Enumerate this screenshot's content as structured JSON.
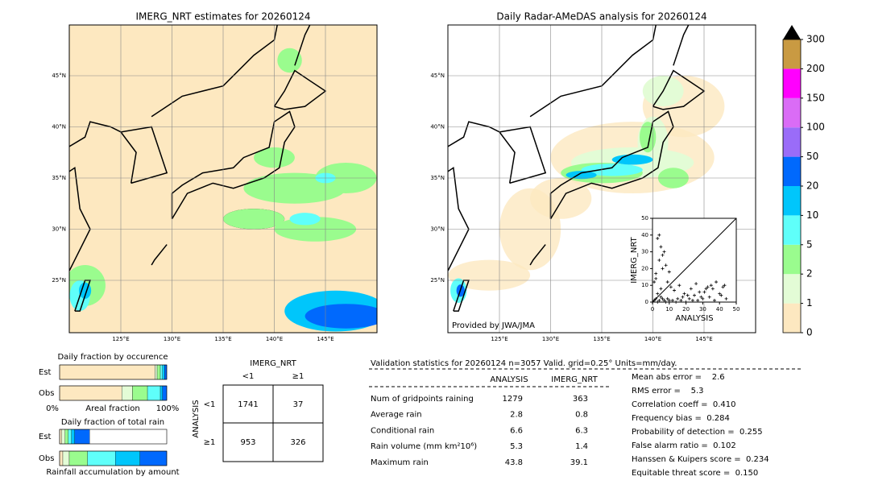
{
  "maps": [
    {
      "title": "IMERG_NRT estimates for 20260124",
      "lat_labels": [
        "45°N",
        "40°N",
        "35°N",
        "30°N",
        "25°N"
      ],
      "lon_labels": [
        "125°E",
        "130°E",
        "135°E",
        "140°E",
        "145°E"
      ]
    },
    {
      "title": "Daily Radar-AMeDAS analysis for 20260124",
      "lat_labels": [
        "45°N",
        "40°N",
        "35°N",
        "30°N",
        "25°N"
      ],
      "lon_labels": [
        "125°E",
        "130°E",
        "135°E",
        "140°E",
        "145°E"
      ],
      "credit": "Provided by JWA/JMA"
    }
  ],
  "colorbar": {
    "ticks": [
      0,
      1,
      2,
      5,
      10,
      20,
      50,
      100,
      150,
      200,
      300
    ],
    "colors": [
      "#fde8c0",
      "#e3fcd6",
      "#9afc8e",
      "#5ffffa",
      "#00c6fb",
      "#0069fd",
      "#9a6cf8",
      "#da6cf6",
      "#ff00fe",
      "#c99a42"
    ]
  },
  "scatter": {
    "type": "scatter",
    "xlabel": "ANALYSIS",
    "ylabel": "IMERG_NRT",
    "xlim": [
      0,
      50
    ],
    "ylim": [
      0,
      50
    ],
    "xticks": [
      0,
      10,
      20,
      30,
      40,
      50
    ],
    "yticks": [
      0,
      10,
      20,
      30,
      40,
      50
    ],
    "x": [
      1,
      2,
      3,
      4,
      5,
      6,
      7,
      8,
      9,
      10,
      12,
      14,
      15,
      17,
      18,
      20,
      22,
      24,
      25,
      27,
      28,
      30,
      32,
      34,
      35,
      37,
      40,
      42,
      3,
      5,
      6,
      8,
      10,
      2,
      4,
      7,
      9,
      11,
      13,
      16,
      19,
      21,
      23,
      26,
      29,
      31,
      33,
      36,
      38,
      41,
      43,
      44,
      1,
      2,
      3,
      4,
      5,
      6
    ],
    "y": [
      1,
      2,
      0,
      1,
      3,
      2,
      1,
      0,
      2,
      1,
      1,
      0,
      2,
      1,
      3,
      0,
      2,
      1,
      4,
      1,
      6,
      2,
      8,
      3,
      10,
      1,
      5,
      9,
      38,
      33,
      28,
      22,
      18,
      14,
      25,
      30,
      12,
      9,
      7,
      10,
      5,
      4,
      8,
      11,
      3,
      6,
      9,
      8,
      12,
      4,
      10,
      2,
      12,
      17,
      5,
      40,
      8,
      20
    ]
  },
  "segment_colors": [
    "#fde8c0",
    "#e3fcd6",
    "#9afc8e",
    "#5ffffa",
    "#00c6fb",
    "#0069fd"
  ],
  "occurrence": {
    "title": "Daily fraction by occurence",
    "rows": [
      "Est",
      "Obs"
    ],
    "segments": [
      [
        89,
        2,
        3,
        2,
        2,
        2
      ],
      [
        58,
        10,
        14,
        12,
        2,
        4
      ]
    ],
    "xlabel": "Areal fraction",
    "xticks": [
      {
        "value": 0,
        "label": "0%"
      },
      {
        "value": 100,
        "label": "100%"
      }
    ]
  },
  "rain_fraction": {
    "title": "Daily fraction of total rain",
    "rows": [
      "Est",
      "Obs"
    ],
    "segments": [
      [
        2,
        3,
        3,
        3,
        3,
        14
      ],
      [
        3,
        6,
        17,
        26,
        23,
        25
      ]
    ],
    "xlabel": "Rainfall accumulation by amount"
  },
  "contingency": {
    "title": "IMERG_NRT",
    "col_labels": [
      "<1",
      "≥1"
    ],
    "row_title": "ANALYSIS",
    "row_labels": [
      "<1",
      "≥1"
    ],
    "cells": [
      [
        1741,
        37
      ],
      [
        953,
        326
      ]
    ]
  },
  "validation": {
    "title": "Validation statistics for 20260124  n=3057 Valid. grid=0.25° Units=mm/day.",
    "headers": [
      "ANALYSIS",
      "IMERG_NRT"
    ],
    "rows": [
      {
        "label": "Num of gridpoints raining",
        "values": [
          1279,
          363
        ]
      },
      {
        "label": "Average rain",
        "values": [
          2.8,
          0.8
        ]
      },
      {
        "label": "Conditional rain",
        "values": [
          6.6,
          6.3
        ]
      },
      {
        "label": "Rain volume (mm km²10⁶)",
        "values": [
          5.3,
          1.4
        ]
      },
      {
        "label": "Maximum rain",
        "values": [
          43.8,
          39.1
        ]
      }
    ],
    "scores": [
      "Mean abs error =    2.6",
      "RMS error =    5.3",
      "Correlation coeff =  0.410",
      "Frequency bias =  0.284",
      "Probability of detection =  0.255",
      "False alarm ratio =  0.102",
      "Hanssen & Kuipers score =  0.234",
      "Equitable threat score =  0.150"
    ]
  }
}
